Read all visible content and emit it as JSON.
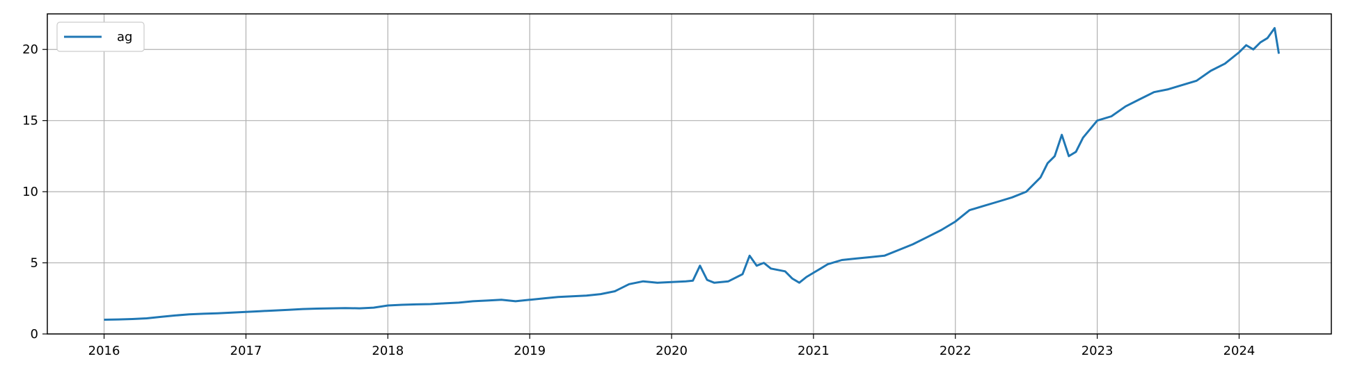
{
  "chart_data": {
    "type": "line",
    "title": "",
    "xlabel": "",
    "ylabel": "",
    "xlim": [
      2015.6,
      2024.65
    ],
    "ylim": [
      0,
      22.5
    ],
    "grid": true,
    "legend": {
      "placement": "top-left"
    },
    "x_ticks": [
      {
        "value": 2016,
        "label": "2016"
      },
      {
        "value": 2017,
        "label": "2017"
      },
      {
        "value": 2018,
        "label": "2018"
      },
      {
        "value": 2019,
        "label": "2019"
      },
      {
        "value": 2020,
        "label": "2020"
      },
      {
        "value": 2021,
        "label": "2021"
      },
      {
        "value": 2022,
        "label": "2022"
      },
      {
        "value": 2023,
        "label": "2023"
      },
      {
        "value": 2024,
        "label": "2024"
      }
    ],
    "y_ticks": [
      {
        "value": 0,
        "label": "0"
      },
      {
        "value": 5,
        "label": "5"
      },
      {
        "value": 10,
        "label": "10"
      },
      {
        "value": 15,
        "label": "15"
      },
      {
        "value": 20,
        "label": "20"
      }
    ],
    "series": [
      {
        "name": "ag",
        "color": "#1f77b4",
        "x": [
          2016.0,
          2016.1,
          2016.2,
          2016.3,
          2016.4,
          2016.5,
          2016.6,
          2016.7,
          2016.8,
          2016.9,
          2017.0,
          2017.1,
          2017.2,
          2017.3,
          2017.4,
          2017.5,
          2017.6,
          2017.7,
          2017.8,
          2017.9,
          2018.0,
          2018.1,
          2018.2,
          2018.3,
          2018.4,
          2018.5,
          2018.6,
          2018.7,
          2018.8,
          2018.9,
          2019.0,
          2019.1,
          2019.2,
          2019.3,
          2019.4,
          2019.5,
          2019.6,
          2019.7,
          2019.8,
          2019.9,
          2020.0,
          2020.1,
          2020.15,
          2020.2,
          2020.25,
          2020.3,
          2020.4,
          2020.5,
          2020.55,
          2020.6,
          2020.65,
          2020.7,
          2020.75,
          2020.8,
          2020.85,
          2020.9,
          2020.95,
          2021.0,
          2021.05,
          2021.1,
          2021.2,
          2021.3,
          2021.4,
          2021.5,
          2021.6,
          2021.7,
          2021.8,
          2021.9,
          2022.0,
          2022.1,
          2022.2,
          2022.3,
          2022.4,
          2022.5,
          2022.6,
          2022.65,
          2022.7,
          2022.75,
          2022.8,
          2022.85,
          2022.9,
          2023.0,
          2023.1,
          2023.2,
          2023.3,
          2023.4,
          2023.5,
          2023.6,
          2023.7,
          2023.8,
          2023.9,
          2024.0,
          2024.05,
          2024.1,
          2024.15,
          2024.2,
          2024.25,
          2024.28
        ],
        "y": [
          1.0,
          1.02,
          1.05,
          1.1,
          1.2,
          1.3,
          1.38,
          1.42,
          1.45,
          1.5,
          1.55,
          1.6,
          1.65,
          1.7,
          1.75,
          1.78,
          1.8,
          1.82,
          1.8,
          1.85,
          2.0,
          2.05,
          2.08,
          2.1,
          2.15,
          2.2,
          2.3,
          2.35,
          2.4,
          2.3,
          2.4,
          2.5,
          2.6,
          2.65,
          2.7,
          2.8,
          3.0,
          3.5,
          3.7,
          3.6,
          3.65,
          3.7,
          3.75,
          4.8,
          3.8,
          3.6,
          3.7,
          4.2,
          5.5,
          4.8,
          5.0,
          4.6,
          4.5,
          4.4,
          3.9,
          3.6,
          4.0,
          4.3,
          4.6,
          4.9,
          5.2,
          5.3,
          5.4,
          5.5,
          5.9,
          6.3,
          6.8,
          7.3,
          7.9,
          8.7,
          9.0,
          9.3,
          9.6,
          10.0,
          11.0,
          12.0,
          12.5,
          14.0,
          12.5,
          12.8,
          13.8,
          15.0,
          15.3,
          16.0,
          16.5,
          17.0,
          17.2,
          17.5,
          17.8,
          18.5,
          19.0,
          19.8,
          20.3,
          20.0,
          20.5,
          20.8,
          21.5,
          19.7
        ]
      }
    ]
  }
}
